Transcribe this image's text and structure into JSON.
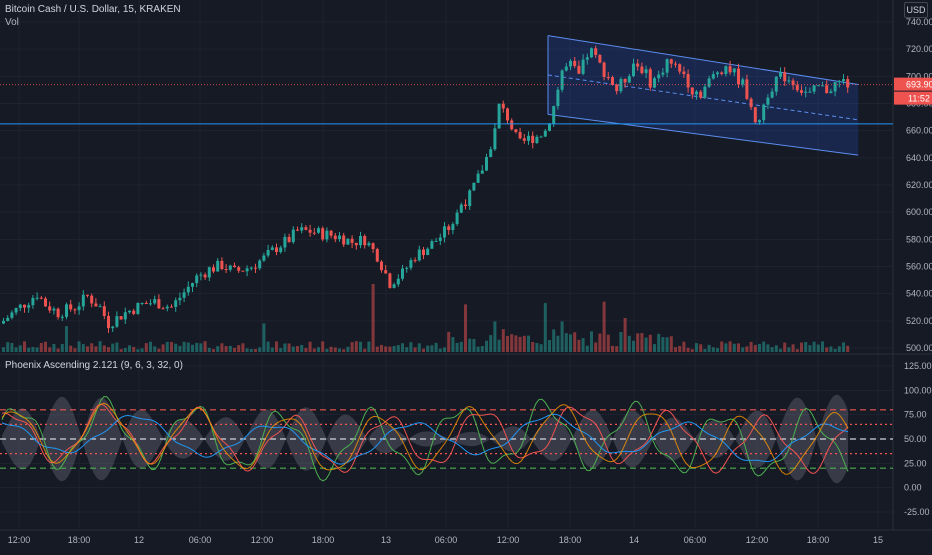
{
  "header": {
    "symbol_title": "Bitcoin Cash / U.S. Dollar, 15, KRAKEN",
    "volume_label": "Vol",
    "indicator_title": "Phoenix Ascending 2.121 (9, 6, 3, 32, 0)",
    "currency": "USD"
  },
  "price_axis": {
    "ticks": [
      "740.00",
      "720.00",
      "700.00",
      "680.00",
      "660.00",
      "640.00",
      "620.00",
      "600.00",
      "580.00",
      "560.00",
      "540.00",
      "520.00",
      "500.00"
    ],
    "last_price": "693.90",
    "countdown": "11:52"
  },
  "indicator_axis": {
    "ticks": [
      "125.00",
      "100.00",
      "75.00",
      "50.00",
      "25.00",
      "0.00",
      "-25.00"
    ]
  },
  "time_axis": {
    "ticks": [
      "12:00",
      "18:00",
      "12",
      "06:00",
      "12:00",
      "18:00",
      "13",
      "06:00",
      "12:00",
      "18:00",
      "14",
      "06:00",
      "12:00",
      "18:00",
      "15"
    ]
  },
  "colors": {
    "up": "#26a69a",
    "down": "#ef5350",
    "channel": "#2962ff",
    "hline": "#2196f3",
    "last_price_badge": "#ef5350",
    "countdown_badge": "#ef5350"
  },
  "chart_data": {
    "type": "candlestick",
    "symbol": "Bitcoin Cash / U.S. Dollar",
    "interval": "15",
    "exchange": "KRAKEN",
    "ylim": [
      495,
      745
    ],
    "horizontal_line": 665,
    "last_price_line": 693.9,
    "close_path": [
      [
        0,
        520
      ],
      [
        3,
        528
      ],
      [
        6,
        535
      ],
      [
        8,
        540
      ],
      [
        10,
        532
      ],
      [
        13,
        526
      ],
      [
        17,
        530
      ],
      [
        20,
        538
      ],
      [
        23,
        530
      ],
      [
        25,
        518
      ],
      [
        26,
        520
      ],
      [
        29,
        526
      ],
      [
        33,
        532
      ],
      [
        36,
        534
      ],
      [
        38,
        532
      ],
      [
        40,
        530
      ],
      [
        43,
        541
      ],
      [
        46,
        552
      ],
      [
        49,
        558
      ],
      [
        52,
        561
      ],
      [
        55,
        556
      ],
      [
        59,
        560
      ],
      [
        62,
        566
      ],
      [
        65,
        574
      ],
      [
        68,
        580
      ],
      [
        70,
        586
      ],
      [
        73,
        586
      ],
      [
        76,
        584
      ],
      [
        80,
        582
      ],
      [
        83,
        578
      ],
      [
        86,
        580
      ],
      [
        89,
        568
      ],
      [
        92,
        548
      ],
      [
        95,
        555
      ],
      [
        98,
        568
      ],
      [
        101,
        574
      ],
      [
        104,
        582
      ],
      [
        107,
        592
      ],
      [
        109,
        606
      ],
      [
        111,
        612
      ],
      [
        113,
        625
      ],
      [
        115,
        640
      ],
      [
        117,
        660
      ],
      [
        118,
        678
      ],
      [
        120,
        670
      ],
      [
        122,
        655
      ],
      [
        123,
        650
      ],
      [
        125,
        654
      ],
      [
        127,
        656
      ],
      [
        129,
        660
      ],
      [
        131,
        678
      ],
      [
        133,
        704
      ],
      [
        135,
        708
      ],
      [
        137,
        700
      ],
      [
        139,
        716
      ],
      [
        140,
        718
      ],
      [
        142,
        708
      ],
      [
        144,
        700
      ],
      [
        146,
        690
      ],
      [
        148,
        698
      ],
      [
        150,
        710
      ],
      [
        152,
        706
      ],
      [
        154,
        696
      ],
      [
        156,
        700
      ],
      [
        158,
        712
      ],
      [
        160,
        706
      ],
      [
        162,
        702
      ],
      [
        164,
        690
      ],
      [
        166,
        688
      ],
      [
        168,
        696
      ],
      [
        170,
        704
      ],
      [
        172,
        708
      ],
      [
        174,
        702
      ],
      [
        176,
        694
      ],
      [
        178,
        680
      ],
      [
        179,
        662
      ],
      [
        180,
        670
      ],
      [
        182,
        688
      ],
      [
        184,
        698
      ],
      [
        186,
        700
      ],
      [
        188,
        696
      ],
      [
        190,
        690
      ],
      [
        192,
        686
      ],
      [
        194,
        692
      ],
      [
        196,
        690
      ],
      [
        198,
        694
      ],
      [
        200,
        696
      ],
      [
        201,
        694
      ]
    ],
    "volume_spikes": [
      {
        "i": 88,
        "v": 1.0
      },
      {
        "i": 110,
        "v": 0.7
      },
      {
        "i": 129,
        "v": 0.72
      },
      {
        "i": 143,
        "v": 0.74
      },
      {
        "i": 133,
        "v": 0.45
      },
      {
        "i": 148,
        "v": 0.5
      },
      {
        "i": 117,
        "v": 0.45
      },
      {
        "i": 62,
        "v": 0.42
      },
      {
        "i": 15,
        "v": 0.38
      }
    ],
    "channel": {
      "start": {
        "i": 130,
        "upper": 730,
        "lower": 672
      },
      "end": {
        "i": 201,
        "upper": 694,
        "lower": 642
      }
    },
    "indicator": {
      "name": "Phoenix Ascending 2.121",
      "params": [
        9,
        6,
        3,
        32,
        0
      ],
      "ylim": [
        -35,
        130
      ],
      "levels": [
        {
          "value": 80,
          "color": "#ef5350",
          "style": "dashed"
        },
        {
          "value": 65,
          "color": "#ef5350",
          "style": "dotted"
        },
        {
          "value": 50,
          "color": "#d1d4dc",
          "style": "dashed"
        },
        {
          "value": 35,
          "color": "#ef5350",
          "style": "dotted"
        },
        {
          "value": 20,
          "color": "#4caf50",
          "style": "dashed"
        }
      ]
    }
  }
}
